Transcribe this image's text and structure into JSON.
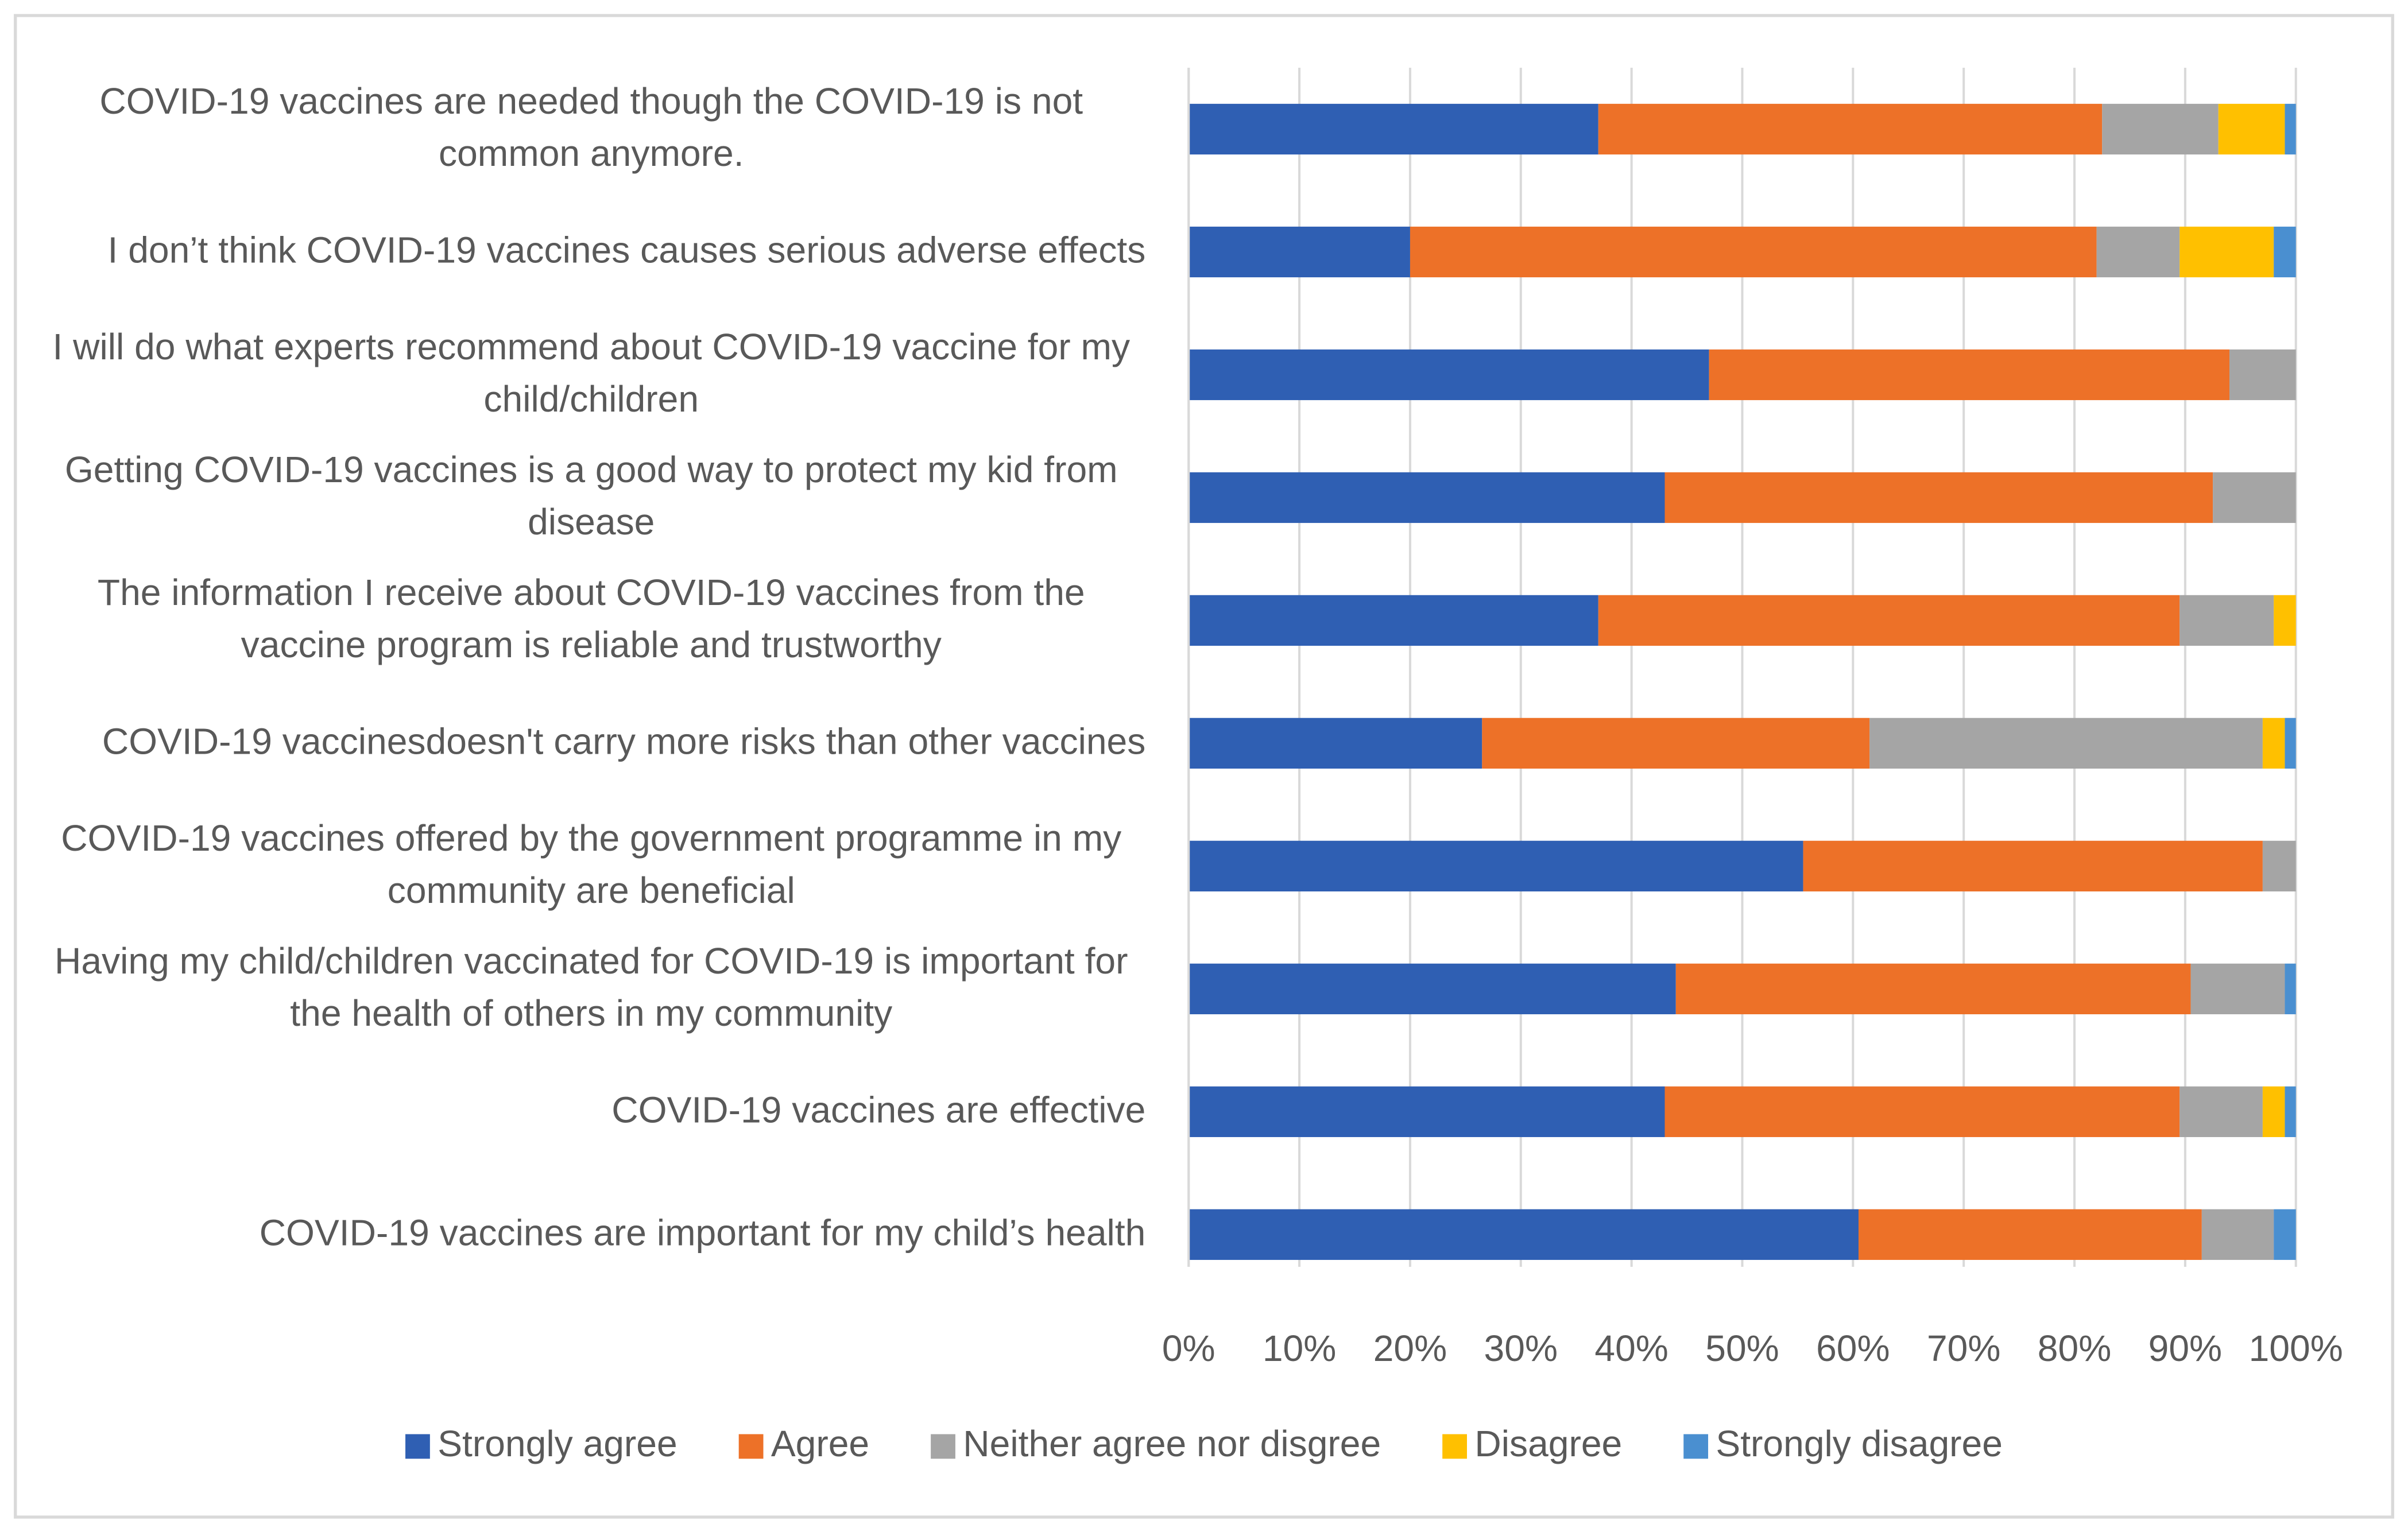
{
  "chart_data": {
    "type": "stacked_barh",
    "categories": [
      "COVID-19 vaccines are needed though the COVID-19 is not common anymore.",
      "I don’t think COVID-19 vaccines causes serious adverse effects",
      "I will do what experts recommend about COVID-19 vaccine for my child/children",
      "Getting COVID-19 vaccines is a good way to protect my kid from disease",
      "The information I receive about COVID-19 vaccines from the vaccine program is reliable and trustworthy",
      "COVID-19 vaccinesdoesn't carry more risks than other vaccines",
      "COVID-19 vaccines offered by the government programme in my community are beneficial",
      "Having my child/children vaccinated for COVID-19 is important for the health of others in my community",
      "COVID-19 vaccines are effective",
      "COVID-19 vaccines are important for my child’s health"
    ],
    "series": [
      {
        "name": "Strongly agree",
        "color": "#2f5fb3",
        "values": [
          37,
          20,
          47,
          43,
          37,
          26.5,
          55.5,
          44,
          43,
          60.5
        ]
      },
      {
        "name": "Agree",
        "color": "#ed7128",
        "values": [
          45.5,
          62,
          47,
          49.5,
          52.5,
          35,
          41.5,
          46.5,
          46.5,
          31
        ]
      },
      {
        "name": "Neither agree nor disgree",
        "color": "#a5a5a5",
        "values": [
          10.5,
          7.5,
          6,
          7.5,
          8.5,
          35.5,
          3,
          8.5,
          7.5,
          6.5
        ]
      },
      {
        "name": "Disagree",
        "color": "#ffc000",
        "values": [
          6,
          8.5,
          0,
          0,
          2,
          2,
          0,
          0,
          2,
          0
        ]
      },
      {
        "name": "Strongly disagree",
        "color": "#4a8fd0",
        "values": [
          1,
          2,
          0,
          0,
          0,
          1,
          0,
          1,
          1,
          2
        ]
      }
    ],
    "xlim": [
      0,
      100
    ],
    "xticks": [
      {
        "value": 0,
        "label": "0%"
      },
      {
        "value": 10,
        "label": "10%"
      },
      {
        "value": 20,
        "label": "20%"
      },
      {
        "value": 30,
        "label": "30%"
      },
      {
        "value": 40,
        "label": "40%"
      },
      {
        "value": 50,
        "label": "50%"
      },
      {
        "value": 60,
        "label": "60%"
      },
      {
        "value": 70,
        "label": "70%"
      },
      {
        "value": 80,
        "label": "80%"
      },
      {
        "value": 90,
        "label": "90%"
      },
      {
        "value": 100,
        "label": "100%"
      }
    ],
    "grid": true,
    "legend": "bottom"
  }
}
